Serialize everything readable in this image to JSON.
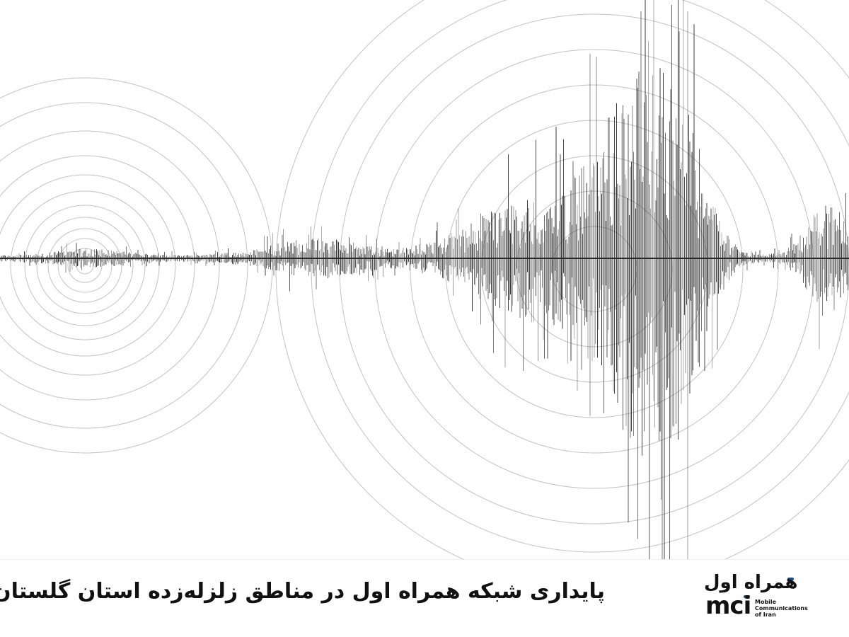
{
  "caption": "پایداری شبکه همراه اول در مناطق زلزله‌زده استان گلستان",
  "logo": {
    "name_fa": "همراه اول",
    "name_en": "mci",
    "tagline": "Mobile Communications of Iran",
    "accent_color": "#1e4f7a"
  },
  "colors": {
    "waveform": "#2a2a2a",
    "rings": "#9a9a9a",
    "background": "#ffffff"
  }
}
